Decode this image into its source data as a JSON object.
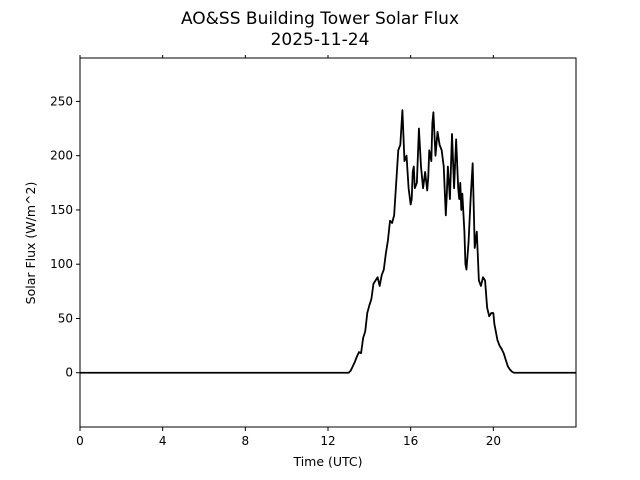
{
  "chart_data": {
    "type": "line",
    "title": "AO&SS Building Tower Solar Flux",
    "subtitle": "2025-11-24",
    "xlabel": "Time (UTC)",
    "ylabel": "Solar Flux (W/m^2)",
    "xlim": [
      0,
      24
    ],
    "ylim": [
      -50,
      290
    ],
    "x_ticks": [
      0,
      4,
      8,
      12,
      16,
      20
    ],
    "y_ticks": [
      0,
      50,
      100,
      150,
      200,
      250
    ],
    "grid": false,
    "legend": false,
    "line_color": "#000000",
    "series": [
      {
        "x": [
          0,
          13.0,
          13.1,
          13.2,
          13.3,
          13.4,
          13.5,
          13.6,
          13.7,
          13.8,
          13.9,
          14.0,
          14.1,
          14.2,
          14.3,
          14.4,
          14.5,
          14.6,
          14.7,
          14.8,
          14.9,
          15.0,
          15.1,
          15.2,
          15.3,
          15.4,
          15.5,
          15.6,
          15.7,
          15.8,
          15.9,
          16.0,
          16.05,
          16.1,
          16.15,
          16.2,
          16.3,
          16.4,
          16.5,
          16.6,
          16.7,
          16.8,
          16.85,
          16.9,
          17.0,
          17.05,
          17.1,
          17.2,
          17.3,
          17.4,
          17.5,
          17.6,
          17.7,
          17.75,
          17.8,
          17.9,
          18.0,
          18.1,
          18.2,
          18.3,
          18.35,
          18.4,
          18.45,
          18.5,
          18.6,
          18.65,
          18.7,
          18.8,
          18.9,
          19.0,
          19.1,
          19.2,
          19.3,
          19.4,
          19.5,
          19.6,
          19.7,
          19.8,
          19.9,
          20.0,
          20.05,
          20.1,
          20.2,
          20.3,
          20.4,
          20.5,
          20.6,
          20.7,
          20.8,
          20.9,
          21.0,
          21.2,
          21.4,
          21.5,
          21.6,
          21.8,
          22.0,
          22.2,
          22.4,
          22.6,
          24
        ],
        "y": [
          0,
          0,
          2,
          6,
          10,
          15,
          19,
          18,
          32,
          38,
          55,
          62,
          68,
          82,
          85,
          88,
          80,
          90,
          95,
          110,
          122,
          140,
          138,
          145,
          175,
          205,
          210,
          242,
          195,
          200,
          170,
          155,
          160,
          185,
          190,
          170,
          175,
          225,
          190,
          170,
          185,
          168,
          180,
          205,
          195,
          230,
          240,
          200,
          222,
          210,
          205,
          190,
          145,
          165,
          190,
          160,
          220,
          170,
          215,
          170,
          160,
          175,
          150,
          165,
          130,
          100,
          95,
          120,
          160,
          193,
          115,
          130,
          85,
          80,
          88,
          85,
          60,
          52,
          55,
          55,
          45,
          40,
          30,
          25,
          22,
          18,
          12,
          6,
          3,
          1,
          0,
          0,
          0,
          0,
          0,
          0,
          0,
          0,
          0,
          0,
          0
        ]
      }
    ]
  }
}
